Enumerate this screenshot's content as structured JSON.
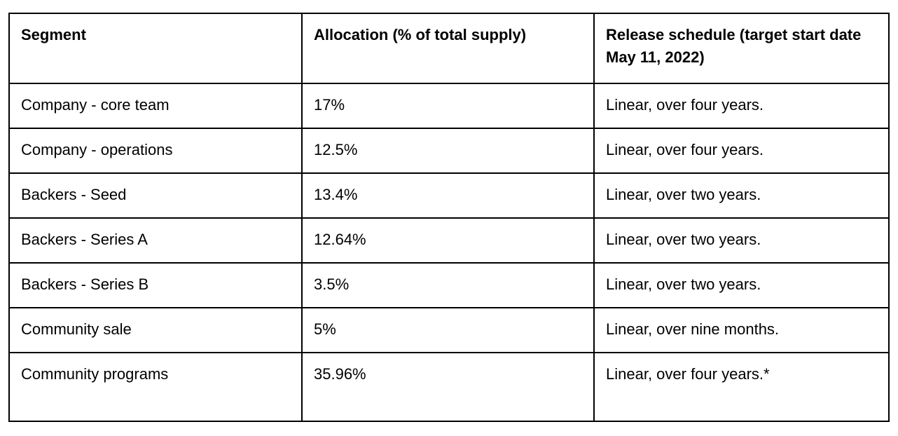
{
  "table": {
    "title": "token-allocation-table",
    "colors": {
      "border": "#000000",
      "text": "#000000",
      "background": "#ffffff"
    },
    "headers": [
      "Segment",
      "Allocation (% of total supply)",
      "Release schedule (target start date May 11, 2022)"
    ],
    "rows": [
      {
        "segment": "Company - core team",
        "allocation": "17%",
        "release": "Linear, over four years."
      },
      {
        "segment": "Company - operations",
        "allocation": "12.5%",
        "release": "Linear, over four years."
      },
      {
        "segment": "Backers - Seed",
        "allocation": "13.4%",
        "release": "Linear, over two years."
      },
      {
        "segment": "Backers - Series A",
        "allocation": "12.64%",
        "release": "Linear, over two years."
      },
      {
        "segment": "Backers - Series B",
        "allocation": "3.5%",
        "release": "Linear, over two years."
      },
      {
        "segment": "Community sale",
        "allocation": "5%",
        "release": "Linear, over nine months."
      },
      {
        "segment": "Community programs",
        "allocation": "35.96%",
        "release": "Linear, over four years.*"
      }
    ]
  }
}
